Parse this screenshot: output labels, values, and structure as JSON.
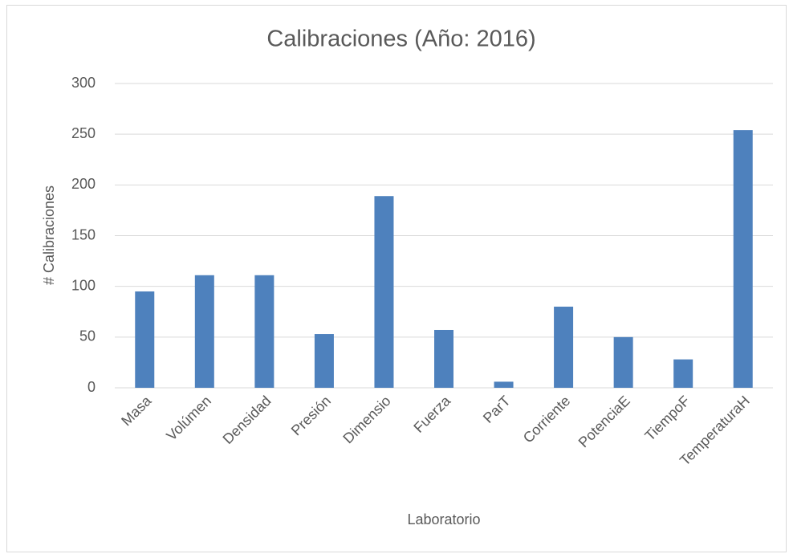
{
  "chart_data": {
    "type": "bar",
    "title": "Calibraciones (Año: 2016)",
    "x_label": "Laboratorio",
    "y_label": "# Calibraciones",
    "categories": [
      "Masa",
      "Volúmen",
      "Densidad",
      "Presión",
      "Dimensio",
      "Fuerza",
      "ParT",
      "Corriente",
      "PotenciaE",
      "TiempoF",
      "TemperaturaH"
    ],
    "values": [
      95,
      111,
      111,
      53,
      189,
      57,
      6,
      80,
      50,
      28,
      254
    ],
    "color": "#4e81bd",
    "ylim": [
      0,
      300
    ],
    "yticks": [
      0,
      50,
      100,
      150,
      200,
      250,
      300
    ],
    "grid": true
  }
}
